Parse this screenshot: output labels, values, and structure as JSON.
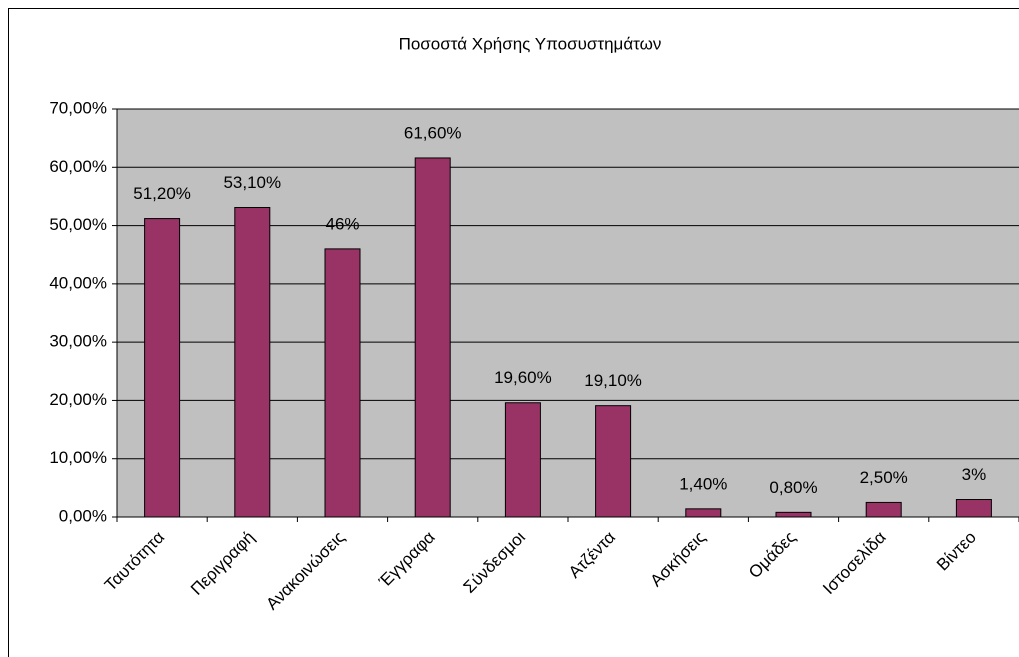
{
  "chart_data": {
    "type": "bar",
    "title": "Ποσοστά Χρήσης Υποσυστημάτων",
    "categories": [
      "Ταυτότητα",
      "Περιγραφή",
      "Ανακοινώσεις",
      "Έγγραφα",
      "Σύνδεσμοι",
      "Ατζέντα",
      "Ασκήσεις",
      "Ομάδες",
      "Ιστοσελίδα",
      "Βίντεο"
    ],
    "values": [
      51.2,
      53.1,
      46,
      61.6,
      19.6,
      19.1,
      1.4,
      0.8,
      2.5,
      3
    ],
    "value_labels": [
      "51,20%",
      "53,10%",
      "46%",
      "61,60%",
      "19,60%",
      "19,10%",
      "1,40%",
      "0,80%",
      "2,50%",
      "3%"
    ],
    "color": "#993366",
    "ylim": [
      0,
      70
    ],
    "yticks": [
      {
        "value": 0,
        "label": "0,00%"
      },
      {
        "value": 10,
        "label": "10,00%"
      },
      {
        "value": 20,
        "label": "20,00%"
      },
      {
        "value": 30,
        "label": "30,00%"
      },
      {
        "value": 40,
        "label": "40,00%"
      },
      {
        "value": 50,
        "label": "50,00%"
      },
      {
        "value": 60,
        "label": "60,00%"
      },
      {
        "value": 70,
        "label": "70,00%"
      }
    ],
    "grid": true
  }
}
